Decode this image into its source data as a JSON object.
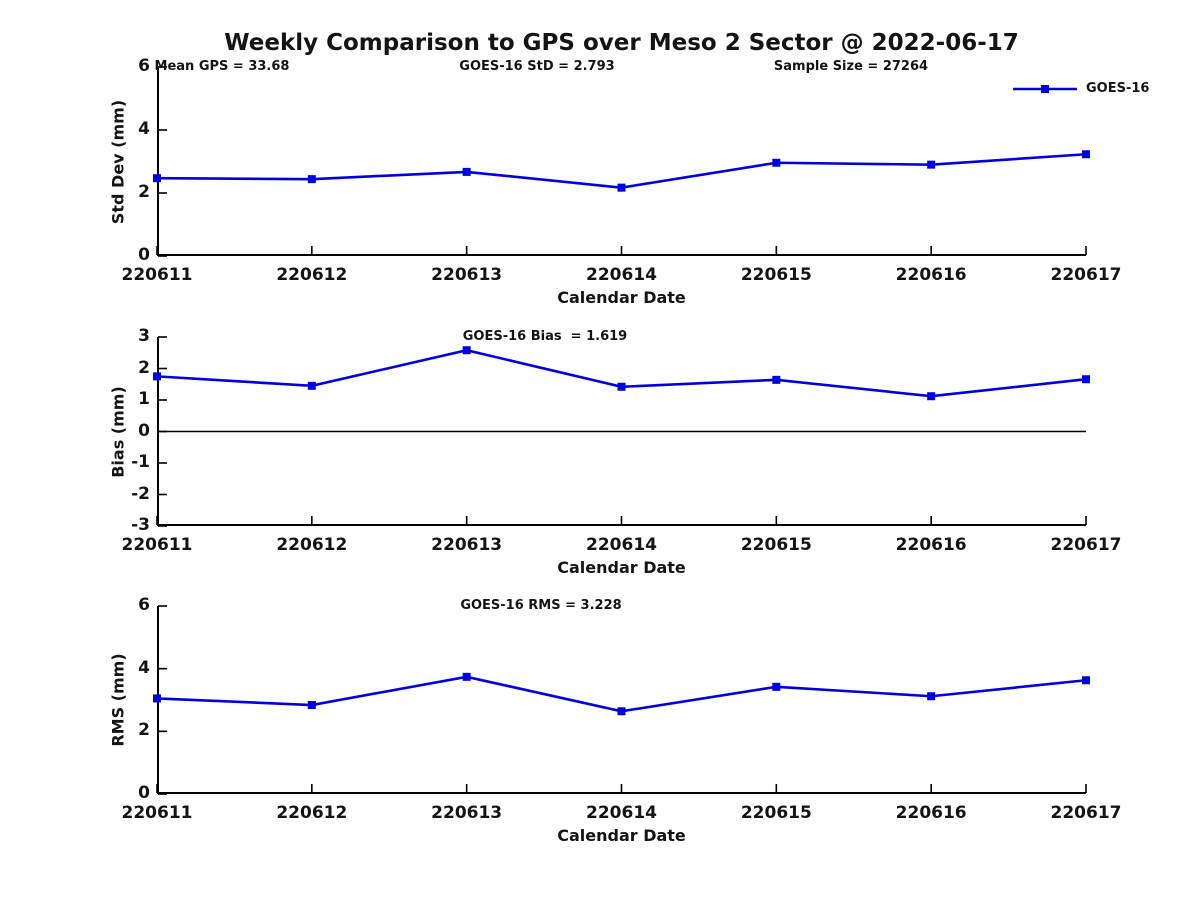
{
  "title": "Weekly Comparison to GPS over Meso 2 Sector @ 2022-06-17",
  "legend": {
    "label": "GOES-16"
  },
  "colors": {
    "line": "#0000dd",
    "axis": "#000000",
    "background": "#ffffff",
    "text": "#141414"
  },
  "chart_data": [
    {
      "type": "line",
      "name": "std-dev",
      "ylabel": "Std Dev (mm)",
      "xlabel": "Calendar Date",
      "categories": [
        "220611",
        "220612",
        "220613",
        "220614",
        "220615",
        "220616",
        "220617"
      ],
      "series": [
        {
          "name": "GOES-16",
          "values": [
            2.47,
            2.44,
            2.67,
            2.17,
            2.96,
            2.9,
            3.23
          ]
        }
      ],
      "ylim": [
        0,
        6
      ],
      "yticks": [
        0,
        2,
        4,
        6
      ],
      "annotations": [
        "Mean GPS = 33.68",
        "GOES-16 StD = 2.793",
        "Sample Size = 27264"
      ],
      "zero_line": false,
      "grid": false,
      "legend_position": "top-right",
      "marker": "square"
    },
    {
      "type": "line",
      "name": "bias",
      "ylabel": "Bias (mm)",
      "xlabel": "Calendar Date",
      "categories": [
        "220611",
        "220612",
        "220613",
        "220614",
        "220615",
        "220616",
        "220617"
      ],
      "series": [
        {
          "name": "GOES-16",
          "values": [
            1.75,
            1.45,
            2.58,
            1.42,
            1.64,
            1.12,
            1.66
          ]
        }
      ],
      "ylim": [
        -3,
        3
      ],
      "yticks": [
        -3,
        -2,
        -1,
        0,
        1,
        2,
        3
      ],
      "annotations": [
        "GOES-16 Bias  = 1.619"
      ],
      "zero_line": true,
      "grid": false,
      "marker": "square"
    },
    {
      "type": "line",
      "name": "rms",
      "ylabel": "RMS (mm)",
      "xlabel": "Calendar Date",
      "categories": [
        "220611",
        "220612",
        "220613",
        "220614",
        "220615",
        "220616",
        "220617"
      ],
      "series": [
        {
          "name": "GOES-16",
          "values": [
            3.05,
            2.84,
            3.74,
            2.64,
            3.42,
            3.12,
            3.63
          ]
        }
      ],
      "ylim": [
        0,
        6
      ],
      "yticks": [
        0,
        2,
        4,
        6
      ],
      "annotations": [
        "GOES-16 RMS = 3.228"
      ],
      "zero_line": false,
      "grid": false,
      "marker": "square"
    }
  ]
}
